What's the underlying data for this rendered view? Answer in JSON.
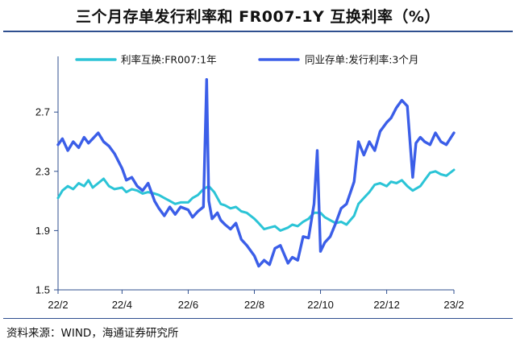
{
  "title": "三个月存单发行利率和 FR007-1Y 互换利率（%）",
  "source": "资料来源：WIND，海通证券研究所",
  "colors": {
    "swap": "#2bc4d6",
    "ncd": "#3b5ee8",
    "frame": "#2f4f8f"
  },
  "chart_data": {
    "type": "line",
    "xlabel": "",
    "ylabel": "",
    "x_ticks": [
      "22/2",
      "22/4",
      "22/6",
      "22/8",
      "22/10",
      "22/12",
      "23/2"
    ],
    "y_ticks": [
      "1.5",
      "1.9",
      "2.3",
      "2.7"
    ],
    "ylim": [
      1.5,
      3.0
    ],
    "xlim": [
      "2022-02-01",
      "2023-02-01"
    ],
    "grid": false,
    "legend": "top",
    "series": [
      {
        "name": "利率互换:FR007:1年",
        "color": "#2bc4d6",
        "x": [
          "2022-02-01",
          "2022-02-05",
          "2022-02-10",
          "2022-02-15",
          "2022-02-20",
          "2022-02-25",
          "2022-03-01",
          "2022-03-05",
          "2022-03-10",
          "2022-03-15",
          "2022-03-20",
          "2022-03-25",
          "2022-04-01",
          "2022-04-05",
          "2022-04-10",
          "2022-04-15",
          "2022-04-20",
          "2022-04-25",
          "2022-05-01",
          "2022-05-05",
          "2022-05-10",
          "2022-05-15",
          "2022-05-20",
          "2022-05-25",
          "2022-06-01",
          "2022-06-05",
          "2022-06-10",
          "2022-06-15",
          "2022-06-20",
          "2022-06-25",
          "2022-07-01",
          "2022-07-05",
          "2022-07-10",
          "2022-07-15",
          "2022-07-20",
          "2022-07-25",
          "2022-08-01",
          "2022-08-05",
          "2022-08-10",
          "2022-08-15",
          "2022-08-20",
          "2022-08-25",
          "2022-09-01",
          "2022-09-05",
          "2022-09-10",
          "2022-09-15",
          "2022-09-20",
          "2022-09-25",
          "2022-10-01",
          "2022-10-05",
          "2022-10-10",
          "2022-10-15",
          "2022-10-20",
          "2022-10-25",
          "2022-11-01",
          "2022-11-05",
          "2022-11-10",
          "2022-11-15",
          "2022-11-20",
          "2022-11-25",
          "2022-12-01",
          "2022-12-05",
          "2022-12-10",
          "2022-12-15",
          "2022-12-20",
          "2022-12-25",
          "2023-01-01",
          "2023-01-05",
          "2023-01-10",
          "2023-01-15",
          "2023-01-20",
          "2023-01-25",
          "2023-02-01"
        ],
        "values": [
          2.12,
          2.17,
          2.2,
          2.18,
          2.22,
          2.2,
          2.24,
          2.19,
          2.22,
          2.25,
          2.2,
          2.18,
          2.19,
          2.16,
          2.18,
          2.17,
          2.15,
          2.16,
          2.15,
          2.14,
          2.12,
          2.1,
          2.08,
          2.09,
          2.09,
          2.12,
          2.14,
          2.18,
          2.2,
          2.16,
          2.08,
          2.07,
          2.05,
          2.06,
          2.03,
          2.02,
          1.98,
          1.95,
          1.91,
          1.92,
          1.93,
          1.9,
          1.92,
          1.94,
          1.93,
          1.96,
          1.98,
          2.02,
          2.02,
          1.99,
          1.97,
          1.95,
          1.96,
          1.94,
          2.0,
          2.08,
          2.12,
          2.16,
          2.21,
          2.22,
          2.2,
          2.23,
          2.22,
          2.24,
          2.2,
          2.17,
          2.2,
          2.24,
          2.29,
          2.3,
          2.28,
          2.27,
          2.31
        ]
      },
      {
        "name": "同业存单:发行利率:3个月",
        "color": "#3b5ee8",
        "x": [
          "2022-02-01",
          "2022-02-05",
          "2022-02-10",
          "2022-02-15",
          "2022-02-20",
          "2022-02-25",
          "2022-03-01",
          "2022-03-05",
          "2022-03-10",
          "2022-03-15",
          "2022-03-20",
          "2022-03-25",
          "2022-04-01",
          "2022-04-05",
          "2022-04-10",
          "2022-04-15",
          "2022-04-20",
          "2022-04-25",
          "2022-05-01",
          "2022-05-05",
          "2022-05-10",
          "2022-05-15",
          "2022-05-20",
          "2022-05-25",
          "2022-06-01",
          "2022-06-05",
          "2022-06-10",
          "2022-06-15",
          "2022-06-18",
          "2022-06-20",
          "2022-06-23",
          "2022-06-28",
          "2022-07-01",
          "2022-07-05",
          "2022-07-10",
          "2022-07-15",
          "2022-07-20",
          "2022-07-25",
          "2022-08-01",
          "2022-08-05",
          "2022-08-10",
          "2022-08-15",
          "2022-08-20",
          "2022-08-25",
          "2022-09-01",
          "2022-09-05",
          "2022-09-10",
          "2022-09-15",
          "2022-09-20",
          "2022-09-25",
          "2022-09-28",
          "2022-10-01",
          "2022-10-05",
          "2022-10-10",
          "2022-10-15",
          "2022-10-20",
          "2022-10-25",
          "2022-11-01",
          "2022-11-05",
          "2022-11-10",
          "2022-11-15",
          "2022-11-20",
          "2022-11-25",
          "2022-12-01",
          "2022-12-05",
          "2022-12-10",
          "2022-12-15",
          "2022-12-20",
          "2022-12-25",
          "2022-12-28",
          "2023-01-01",
          "2023-01-05",
          "2023-01-10",
          "2023-01-15",
          "2023-01-20",
          "2023-01-25",
          "2023-02-01"
        ],
        "values": [
          2.48,
          2.52,
          2.44,
          2.5,
          2.46,
          2.53,
          2.49,
          2.52,
          2.56,
          2.5,
          2.47,
          2.42,
          2.32,
          2.24,
          2.26,
          2.2,
          2.17,
          2.22,
          2.1,
          2.05,
          2.0,
          2.06,
          2.01,
          2.06,
          2.04,
          1.99,
          2.03,
          2.06,
          2.92,
          2.1,
          1.98,
          2.02,
          1.97,
          1.94,
          1.91,
          1.95,
          1.84,
          1.8,
          1.73,
          1.66,
          1.7,
          1.67,
          1.78,
          1.8,
          1.68,
          1.72,
          1.7,
          1.86,
          1.85,
          2.08,
          2.44,
          1.76,
          1.82,
          1.86,
          1.95,
          2.05,
          2.08,
          2.23,
          2.5,
          2.41,
          2.5,
          2.44,
          2.57,
          2.63,
          2.66,
          2.73,
          2.78,
          2.74,
          2.26,
          2.49,
          2.53,
          2.5,
          2.48,
          2.56,
          2.5,
          2.48,
          2.56
        ]
      }
    ]
  }
}
